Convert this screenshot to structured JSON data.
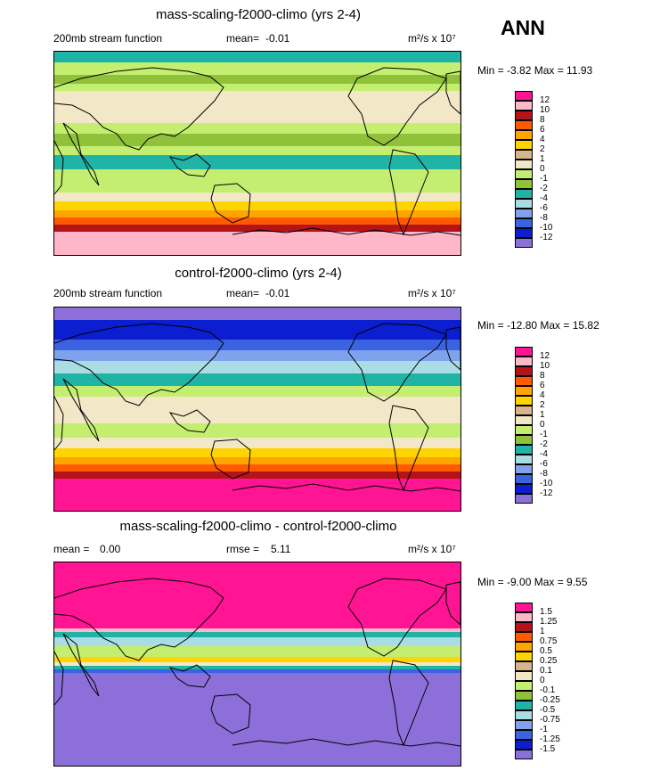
{
  "season": "ANN",
  "colors": {
    "c_n12": "#8c6fd9",
    "c_n10": "#0b1ed0",
    "c_n8": "#3b62e0",
    "c_n6": "#7ea3ec",
    "c_n4": "#a9dde3",
    "c_n2": "#1fb4a6",
    "c_n1": "#8fc13b",
    "c_0": "#c4ee70",
    "c_1": "#f2e7c6",
    "c_2": "#d8b48a",
    "c_4": "#ffd400",
    "c_6": "#ffa500",
    "c_8": "#ff5a00",
    "c_10": "#b5131a",
    "c_12": "#ffb6c8",
    "c_top": "#ff1493"
  },
  "panels": [
    {
      "title": "mass-scaling-f2000-climo (yrs 2-4)",
      "left_label": "200mb stream function",
      "stat_label": "mean=",
      "stat_value": "-0.01",
      "units": "m²/s x 10⁷",
      "min_max": "Min = -3.82 Max = 11.93",
      "levels": [
        "12",
        "10",
        "8",
        "6",
        "4",
        "2",
        "1",
        "0",
        "-1",
        "-2",
        "-4",
        "-6",
        "-8",
        "-10",
        "-12"
      ],
      "bands": [
        {
          "c": "c_n2",
          "h": 12
        },
        {
          "c": "c_0",
          "h": 14
        },
        {
          "c": "c_n1",
          "h": 10
        },
        {
          "c": "c_0",
          "h": 8
        },
        {
          "c": "c_1",
          "h": 36
        },
        {
          "c": "c_0",
          "h": 12
        },
        {
          "c": "c_n1",
          "h": 14
        },
        {
          "c": "c_0",
          "h": 10
        },
        {
          "c": "c_n2",
          "h": 16
        },
        {
          "c": "c_0",
          "h": 26
        },
        {
          "c": "c_1",
          "h": 10
        },
        {
          "c": "c_4",
          "h": 10
        },
        {
          "c": "c_6",
          "h": 8
        },
        {
          "c": "c_8",
          "h": 8
        },
        {
          "c": "c_10",
          "h": 8
        },
        {
          "c": "c_12",
          "h": 26
        }
      ]
    },
    {
      "title": "control-f2000-climo (yrs 2-4)",
      "left_label": "200mb stream function",
      "stat_label": "mean=",
      "stat_value": "-0.01",
      "units": "m²/s x 10⁷",
      "min_max": "Min = -12.80 Max = 15.82",
      "levels": [
        "12",
        "10",
        "8",
        "6",
        "4",
        "2",
        "1",
        "0",
        "-1",
        "-2",
        "-4",
        "-6",
        "-8",
        "-10",
        "-12"
      ],
      "bands": [
        {
          "c": "c_n12",
          "h": 14
        },
        {
          "c": "c_n10",
          "h": 22
        },
        {
          "c": "c_n8",
          "h": 12
        },
        {
          "c": "c_n6",
          "h": 12
        },
        {
          "c": "c_n4",
          "h": 14
        },
        {
          "c": "c_n2",
          "h": 14
        },
        {
          "c": "c_0",
          "h": 12
        },
        {
          "c": "c_1",
          "h": 30
        },
        {
          "c": "c_0",
          "h": 16
        },
        {
          "c": "c_1",
          "h": 12
        },
        {
          "c": "c_4",
          "h": 10
        },
        {
          "c": "c_6",
          "h": 8
        },
        {
          "c": "c_8",
          "h": 8
        },
        {
          "c": "c_10",
          "h": 8
        },
        {
          "c": "c_top",
          "h": 36
        }
      ]
    },
    {
      "title": "mass-scaling-f2000-climo - control-f2000-climo",
      "left_label": "mean =",
      "left_value": "0.00",
      "stat_label": "rmse =",
      "stat_value": "5.11",
      "units": "m²/s x 10⁷",
      "min_max": "Min = -9.00 Max = 9.55",
      "levels": [
        "1.5",
        "1.25",
        "1",
        "0.75",
        "0.5",
        "0.25",
        "0.1",
        "0",
        "-0.1",
        "-0.25",
        "-0.5",
        "-0.75",
        "-1",
        "-1.25",
        "-1.5"
      ],
      "bands": [
        {
          "c": "c_top",
          "h": 74
        },
        {
          "c": "c_12",
          "h": 4
        },
        {
          "c": "c_n2",
          "h": 6
        },
        {
          "c": "c_n4",
          "h": 10
        },
        {
          "c": "c_0",
          "h": 12
        },
        {
          "c": "c_4",
          "h": 6
        },
        {
          "c": "c_1",
          "h": 4
        },
        {
          "c": "c_n2",
          "h": 4
        },
        {
          "c": "c_n8",
          "h": 4
        },
        {
          "c": "c_n12",
          "h": 104
        }
      ]
    }
  ],
  "legend_colors": [
    "c_top",
    "c_12",
    "c_10",
    "c_8",
    "c_6",
    "c_4",
    "c_2",
    "c_1",
    "c_0",
    "c_n1",
    "c_n2",
    "c_n4",
    "c_n6",
    "c_n8",
    "c_n10",
    "c_n12"
  ]
}
